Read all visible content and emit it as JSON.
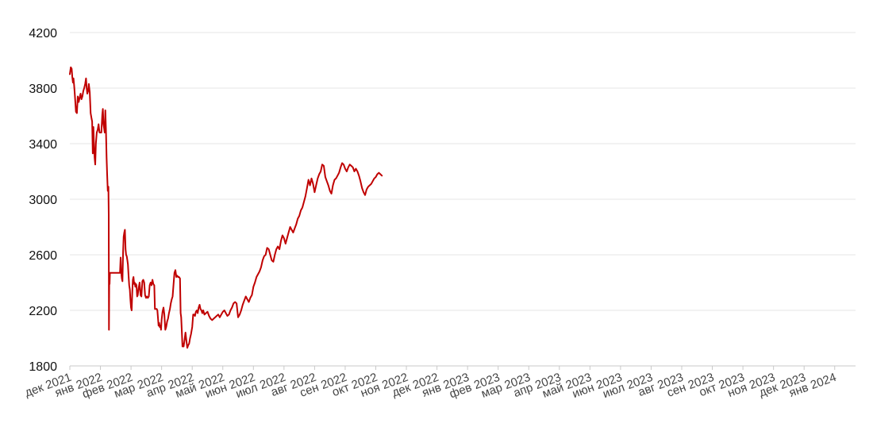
{
  "chart_data": {
    "type": "line",
    "title": "",
    "xlabel": "",
    "ylabel": "",
    "ylim": [
      1800,
      4200
    ],
    "y_ticks": [
      1800,
      2200,
      2600,
      3000,
      3400,
      3800,
      4200
    ],
    "grid": true,
    "legend": "none",
    "line_color": "#c00000",
    "x_tick_labels": [
      "дек 2021",
      "янв 2022",
      "фев 2022",
      "мар 2022",
      "апр 2022",
      "май 2022",
      "июн 2022",
      "июл 2022",
      "авг 2022",
      "сен 2022",
      "окт 2022",
      "ноя 2022",
      "дек 2022",
      "янв 2023",
      "фев 2023",
      "мар 2023",
      "апр 2023",
      "май 2023",
      "июн 2023",
      "июл 2023",
      "авг 2023",
      "сен 2023",
      "окт 2023",
      "ноя 2023",
      "дек 2023",
      "янв 2024"
    ],
    "series": [
      {
        "points": [
          [
            0,
            3900
          ],
          [
            0.03,
            3950
          ],
          [
            0.06,
            3940
          ],
          [
            0.08,
            3880
          ],
          [
            0.1,
            3840
          ],
          [
            0.12,
            3870
          ],
          [
            0.14,
            3820
          ],
          [
            0.16,
            3760
          ],
          [
            0.18,
            3700
          ],
          [
            0.2,
            3630
          ],
          [
            0.23,
            3620
          ],
          [
            0.26,
            3740
          ],
          [
            0.29,
            3700
          ],
          [
            0.32,
            3730
          ],
          [
            0.35,
            3760
          ],
          [
            0.38,
            3720
          ],
          [
            0.41,
            3740
          ],
          [
            0.44,
            3780
          ],
          [
            0.47,
            3800
          ],
          [
            0.5,
            3830
          ],
          [
            0.53,
            3870
          ],
          [
            0.55,
            3800
          ],
          [
            0.57,
            3760
          ],
          [
            0.6,
            3780
          ],
          [
            0.62,
            3830
          ],
          [
            0.65,
            3770
          ],
          [
            0.68,
            3620
          ],
          [
            0.71,
            3580
          ],
          [
            0.73,
            3560
          ],
          [
            0.75,
            3330
          ],
          [
            0.77,
            3520
          ],
          [
            0.79,
            3380
          ],
          [
            0.81,
            3300
          ],
          [
            0.83,
            3250
          ],
          [
            0.85,
            3400
          ],
          [
            0.88,
            3480
          ],
          [
            0.91,
            3500
          ],
          [
            0.94,
            3540
          ],
          [
            0.97,
            3480
          ],
          [
            1.0,
            3480
          ],
          [
            1.03,
            3480
          ],
          [
            1.06,
            3610
          ],
          [
            1.08,
            3650
          ],
          [
            1.1,
            3540
          ],
          [
            1.12,
            3510
          ],
          [
            1.14,
            3480
          ],
          [
            1.16,
            3640
          ],
          [
            1.18,
            3500
          ],
          [
            1.2,
            3300
          ],
          [
            1.22,
            3180
          ],
          [
            1.24,
            3060
          ],
          [
            1.26,
            3090
          ],
          [
            1.27,
            2890
          ],
          [
            1.28,
            2060
          ],
          [
            1.29,
            2470
          ],
          [
            1.3,
            2390
          ],
          [
            1.31,
            2470
          ],
          [
            1.4,
            2470
          ],
          [
            1.5,
            2470
          ],
          [
            1.6,
            2470
          ],
          [
            1.64,
            2470
          ],
          [
            1.66,
            2580
          ],
          [
            1.68,
            2470
          ],
          [
            1.7,
            2430
          ],
          [
            1.72,
            2410
          ],
          [
            1.74,
            2620
          ],
          [
            1.76,
            2730
          ],
          [
            1.78,
            2760
          ],
          [
            1.8,
            2780
          ],
          [
            1.82,
            2640
          ],
          [
            1.84,
            2600
          ],
          [
            1.86,
            2590
          ],
          [
            1.88,
            2560
          ],
          [
            1.9,
            2530
          ],
          [
            1.92,
            2450
          ],
          [
            1.94,
            2380
          ],
          [
            1.96,
            2350
          ],
          [
            1.98,
            2280
          ],
          [
            2.0,
            2220
          ],
          [
            2.02,
            2200
          ],
          [
            2.04,
            2320
          ],
          [
            2.06,
            2420
          ],
          [
            2.08,
            2440
          ],
          [
            2.1,
            2390
          ],
          [
            2.12,
            2400
          ],
          [
            2.14,
            2370
          ],
          [
            2.16,
            2390
          ],
          [
            2.18,
            2380
          ],
          [
            2.2,
            2300
          ],
          [
            2.22,
            2310
          ],
          [
            2.25,
            2360
          ],
          [
            2.28,
            2400
          ],
          [
            2.31,
            2310
          ],
          [
            2.34,
            2300
          ],
          [
            2.37,
            2410
          ],
          [
            2.4,
            2420
          ],
          [
            2.43,
            2400
          ],
          [
            2.46,
            2310
          ],
          [
            2.49,
            2290
          ],
          [
            2.52,
            2300
          ],
          [
            2.55,
            2290
          ],
          [
            2.58,
            2300
          ],
          [
            2.61,
            2380
          ],
          [
            2.64,
            2400
          ],
          [
            2.67,
            2380
          ],
          [
            2.7,
            2420
          ],
          [
            2.73,
            2390
          ],
          [
            2.76,
            2380
          ],
          [
            2.78,
            2210
          ],
          [
            2.8,
            2210
          ],
          [
            2.82,
            2210
          ],
          [
            2.84,
            2210
          ],
          [
            2.86,
            2200
          ],
          [
            2.88,
            2150
          ],
          [
            2.9,
            2090
          ],
          [
            2.92,
            2110
          ],
          [
            2.94,
            2080
          ],
          [
            2.96,
            2090
          ],
          [
            2.98,
            2060
          ],
          [
            3.0,
            2130
          ],
          [
            3.03,
            2190
          ],
          [
            3.06,
            2220
          ],
          [
            3.09,
            2170
          ],
          [
            3.12,
            2060
          ],
          [
            3.15,
            2080
          ],
          [
            3.18,
            2120
          ],
          [
            3.21,
            2140
          ],
          [
            3.24,
            2180
          ],
          [
            3.27,
            2210
          ],
          [
            3.3,
            2250
          ],
          [
            3.33,
            2280
          ],
          [
            3.36,
            2300
          ],
          [
            3.39,
            2390
          ],
          [
            3.42,
            2470
          ],
          [
            3.45,
            2490
          ],
          [
            3.48,
            2440
          ],
          [
            3.51,
            2450
          ],
          [
            3.54,
            2440
          ],
          [
            3.57,
            2440
          ],
          [
            3.6,
            2430
          ],
          [
            3.62,
            2180
          ],
          [
            3.64,
            2150
          ],
          [
            3.66,
            2050
          ],
          [
            3.68,
            1940
          ],
          [
            3.7,
            1960
          ],
          [
            3.72,
            1940
          ],
          [
            3.75,
            1990
          ],
          [
            3.78,
            2040
          ],
          [
            3.81,
            1980
          ],
          [
            3.84,
            1930
          ],
          [
            3.87,
            1950
          ],
          [
            3.9,
            1960
          ],
          [
            3.93,
            2000
          ],
          [
            3.96,
            2030
          ],
          [
            4.0,
            2080
          ],
          [
            4.03,
            2170
          ],
          [
            4.06,
            2170
          ],
          [
            4.09,
            2160
          ],
          [
            4.12,
            2190
          ],
          [
            4.15,
            2200
          ],
          [
            4.18,
            2180
          ],
          [
            4.21,
            2220
          ],
          [
            4.24,
            2240
          ],
          [
            4.27,
            2210
          ],
          [
            4.3,
            2200
          ],
          [
            4.33,
            2180
          ],
          [
            4.36,
            2200
          ],
          [
            4.4,
            2170
          ],
          [
            4.45,
            2180
          ],
          [
            4.5,
            2190
          ],
          [
            4.55,
            2160
          ],
          [
            4.6,
            2140
          ],
          [
            4.65,
            2130
          ],
          [
            4.7,
            2140
          ],
          [
            4.75,
            2150
          ],
          [
            4.8,
            2160
          ],
          [
            4.85,
            2170
          ],
          [
            4.9,
            2150
          ],
          [
            4.95,
            2170
          ],
          [
            5.0,
            2190
          ],
          [
            5.05,
            2200
          ],
          [
            5.1,
            2180
          ],
          [
            5.15,
            2160
          ],
          [
            5.2,
            2170
          ],
          [
            5.25,
            2200
          ],
          [
            5.3,
            2220
          ],
          [
            5.35,
            2250
          ],
          [
            5.4,
            2260
          ],
          [
            5.45,
            2250
          ],
          [
            5.5,
            2150
          ],
          [
            5.55,
            2170
          ],
          [
            5.6,
            2200
          ],
          [
            5.65,
            2240
          ],
          [
            5.7,
            2270
          ],
          [
            5.75,
            2300
          ],
          [
            5.8,
            2280
          ],
          [
            5.85,
            2260
          ],
          [
            5.9,
            2290
          ],
          [
            5.95,
            2310
          ],
          [
            6.0,
            2370
          ],
          [
            6.05,
            2400
          ],
          [
            6.1,
            2440
          ],
          [
            6.15,
            2460
          ],
          [
            6.2,
            2480
          ],
          [
            6.25,
            2510
          ],
          [
            6.3,
            2560
          ],
          [
            6.35,
            2590
          ],
          [
            6.4,
            2600
          ],
          [
            6.45,
            2650
          ],
          [
            6.5,
            2640
          ],
          [
            6.55,
            2600
          ],
          [
            6.6,
            2560
          ],
          [
            6.65,
            2550
          ],
          [
            6.7,
            2600
          ],
          [
            6.75,
            2640
          ],
          [
            6.8,
            2660
          ],
          [
            6.85,
            2640
          ],
          [
            6.9,
            2700
          ],
          [
            6.95,
            2740
          ],
          [
            7.0,
            2720
          ],
          [
            7.05,
            2680
          ],
          [
            7.1,
            2720
          ],
          [
            7.15,
            2760
          ],
          [
            7.2,
            2800
          ],
          [
            7.25,
            2780
          ],
          [
            7.3,
            2760
          ],
          [
            7.35,
            2790
          ],
          [
            7.4,
            2820
          ],
          [
            7.45,
            2860
          ],
          [
            7.5,
            2880
          ],
          [
            7.55,
            2920
          ],
          [
            7.6,
            2940
          ],
          [
            7.65,
            2980
          ],
          [
            7.7,
            3020
          ],
          [
            7.75,
            3080
          ],
          [
            7.8,
            3140
          ],
          [
            7.85,
            3100
          ],
          [
            7.9,
            3150
          ],
          [
            7.95,
            3110
          ],
          [
            8.0,
            3050
          ],
          [
            8.05,
            3100
          ],
          [
            8.1,
            3150
          ],
          [
            8.15,
            3180
          ],
          [
            8.2,
            3200
          ],
          [
            8.25,
            3250
          ],
          [
            8.3,
            3240
          ],
          [
            8.35,
            3160
          ],
          [
            8.4,
            3130
          ],
          [
            8.45,
            3100
          ],
          [
            8.5,
            3060
          ],
          [
            8.55,
            3040
          ],
          [
            8.6,
            3100
          ],
          [
            8.65,
            3140
          ],
          [
            8.7,
            3150
          ],
          [
            8.75,
            3170
          ],
          [
            8.8,
            3190
          ],
          [
            8.85,
            3230
          ],
          [
            8.9,
            3260
          ],
          [
            8.95,
            3250
          ],
          [
            9.0,
            3220
          ],
          [
            9.05,
            3200
          ],
          [
            9.1,
            3230
          ],
          [
            9.15,
            3250
          ],
          [
            9.2,
            3240
          ],
          [
            9.25,
            3230
          ],
          [
            9.3,
            3200
          ],
          [
            9.35,
            3220
          ],
          [
            9.4,
            3200
          ],
          [
            9.45,
            3170
          ],
          [
            9.5,
            3130
          ],
          [
            9.55,
            3080
          ],
          [
            9.6,
            3050
          ],
          [
            9.65,
            3030
          ],
          [
            9.7,
            3070
          ],
          [
            9.75,
            3090
          ],
          [
            9.8,
            3100
          ],
          [
            9.85,
            3110
          ],
          [
            9.9,
            3130
          ],
          [
            9.95,
            3150
          ],
          [
            10.0,
            3160
          ],
          [
            10.05,
            3180
          ],
          [
            10.1,
            3190
          ],
          [
            10.15,
            3180
          ],
          [
            10.2,
            3170
          ]
        ]
      }
    ]
  }
}
